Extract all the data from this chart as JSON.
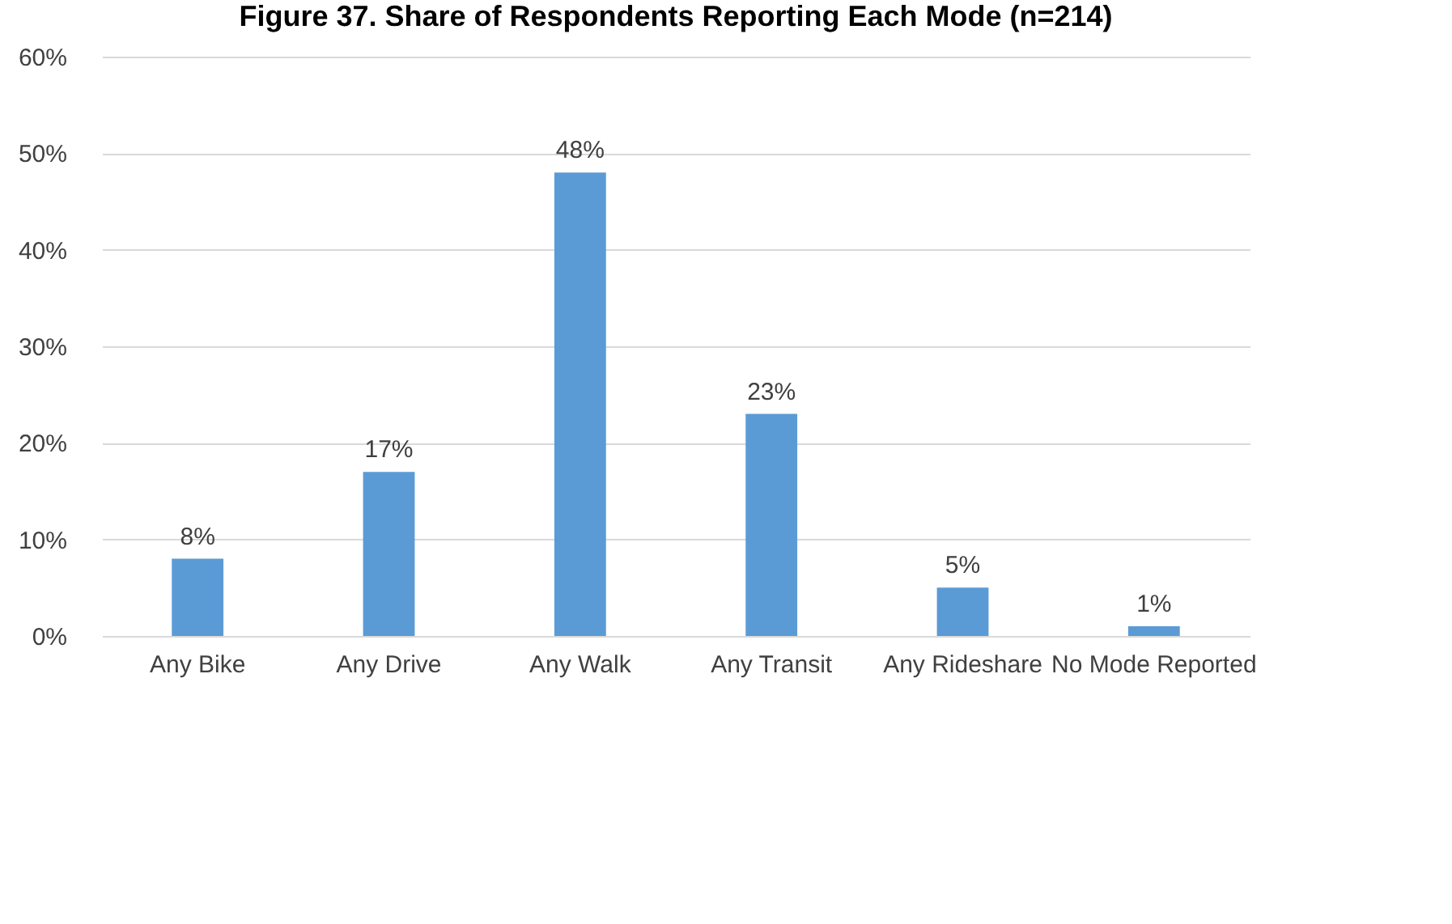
{
  "chart_data": {
    "type": "bar",
    "title": "Figure 37. Share of Respondents Reporting Each Mode (n=214)",
    "categories": [
      "Any Bike",
      "Any Drive",
      "Any Walk",
      "Any Transit",
      "Any Rideshare",
      "No Mode Reported"
    ],
    "values": [
      8,
      17,
      48,
      23,
      5,
      1
    ],
    "color": "#5b9bd5",
    "ylim": [
      0,
      60
    ],
    "yticks": [
      {
        "value": 0,
        "label": "0%"
      },
      {
        "value": 10,
        "label": "10%"
      },
      {
        "value": 20,
        "label": "20%"
      },
      {
        "value": 30,
        "label": "30%"
      },
      {
        "value": 40,
        "label": "40%"
      },
      {
        "value": 50,
        "label": "50%"
      },
      {
        "value": 60,
        "label": "60%"
      }
    ],
    "grid": true,
    "value_labels": [
      "8%",
      "17%",
      "48%",
      "23%",
      "5%",
      "1%"
    ]
  }
}
